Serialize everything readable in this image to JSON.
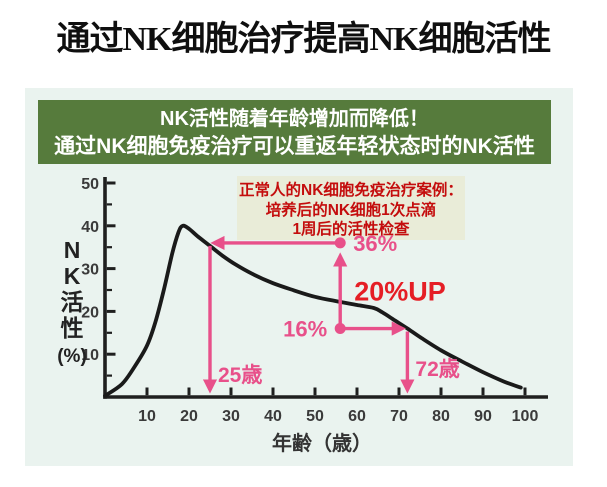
{
  "title": "通过NK细胞治疗提高NK细胞活性",
  "banner": {
    "line1": "NK活性随着年龄增加而降低！",
    "line2": "通过NK细胞免疫治疗可以重返年轻状态时的NK活性"
  },
  "note_box": {
    "lines": [
      "正常人的NK细胞免疫治疗案例：",
      "培养后的NK细胞1次点滴",
      "1周后的活性检查"
    ]
  },
  "colors": {
    "accent": "#e8508a",
    "up_red": "#e51e25",
    "note_red": "#c40d0d",
    "note_bg": "#e9ecd8",
    "banner_green": "#567b3c",
    "panel_bg": "#eaf3ef",
    "curve": "#1a1a1a",
    "axis": "#1f1f1f",
    "tick": "#3a3a3a"
  },
  "chart_data": {
    "type": "line",
    "xlabel": "年齢（歳）",
    "ylabel": "NK活性(%)",
    "ylabel_chars": [
      "N",
      "K",
      "活",
      "性",
      "(%)"
    ],
    "xlim": [
      0,
      105
    ],
    "ylim": [
      0,
      52
    ],
    "grid": false,
    "x_ticks": [
      10,
      20,
      30,
      40,
      50,
      60,
      70,
      80,
      90,
      100
    ],
    "y_ticks": [
      10,
      20,
      30,
      40,
      50
    ],
    "y_minor_ticks": [
      5,
      15,
      25,
      35,
      45
    ],
    "series": [
      {
        "name": "NK活性",
        "x": [
          0,
          4,
          7,
          10,
          12,
          14,
          16,
          17.5,
          18.5,
          20,
          22,
          25,
          28,
          31,
          35,
          40,
          45,
          50,
          55,
          60,
          64,
          66,
          69,
          72,
          75,
          80,
          85,
          90,
          95,
          99
        ],
        "y": [
          0.3,
          3,
          7,
          12,
          17.5,
          25,
          33.5,
          38.5,
          40,
          39.3,
          37.6,
          35.3,
          33,
          31,
          28.8,
          26.6,
          24.9,
          23.4,
          22.4,
          21.5,
          20.8,
          19.8,
          17.9,
          16,
          14,
          10.9,
          8.3,
          5.8,
          3.6,
          2.2
        ]
      }
    ],
    "annotations": {
      "treated_value": 36,
      "treated_value_label": "36%",
      "baseline_value": 16,
      "baseline_value_label": "16%",
      "up_label": "20%UP",
      "young_age": 25,
      "young_age_label": "25歳",
      "old_age": 72,
      "old_age_label": "72歳",
      "marker_age": 56
    }
  }
}
